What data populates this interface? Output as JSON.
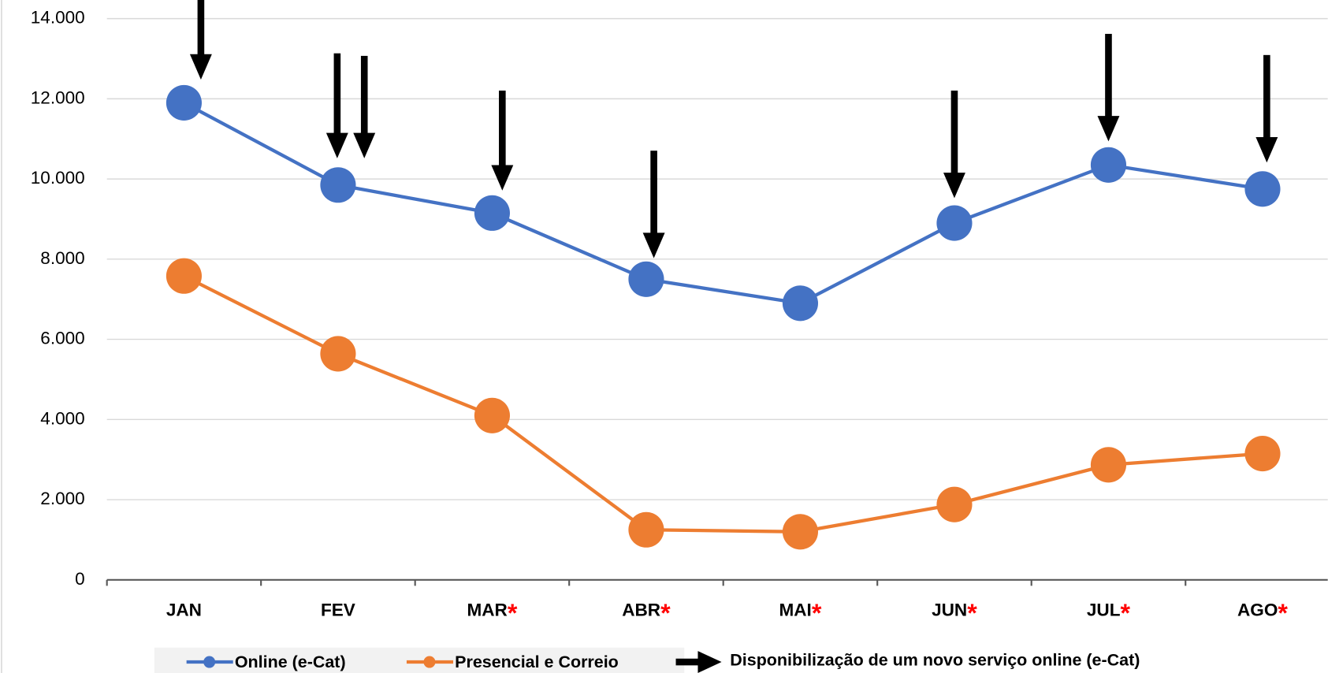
{
  "chart_data": {
    "type": "line",
    "categories": [
      "JAN",
      "FEV",
      "MAR",
      "ABR",
      "MAI",
      "JUN",
      "JUL",
      "AGO"
    ],
    "category_notes": [
      null,
      null,
      "*",
      "*",
      "*",
      "*",
      "*",
      "*"
    ],
    "series": [
      {
        "name": "Online (e-Cat)",
        "color": "#4472c4",
        "values": [
          11900,
          9850,
          9150,
          7500,
          6900,
          8900,
          10350,
          9750
        ]
      },
      {
        "name": "Presencial e Correio",
        "color": "#ed7d31",
        "values": [
          7580,
          5640,
          4100,
          1250,
          1200,
          1880,
          2870,
          3150
        ]
      }
    ],
    "annotation_legend": "Disponibilização de um novo serviço online (e-Cat)",
    "ylim": [
      0,
      14000
    ],
    "yticks": [
      0,
      {
        "value": 2000,
        "label": "2.000"
      },
      {
        "value": 4000,
        "label": "4.000"
      },
      {
        "value": 6000,
        "label": "6.000"
      },
      {
        "value": 8000,
        "label": "8.000"
      },
      {
        "value": 10000,
        "label": "10.000"
      },
      {
        "value": 12000,
        "label": "12.000"
      },
      {
        "value": 14000,
        "label": "14.000"
      }
    ],
    "grid": true
  }
}
